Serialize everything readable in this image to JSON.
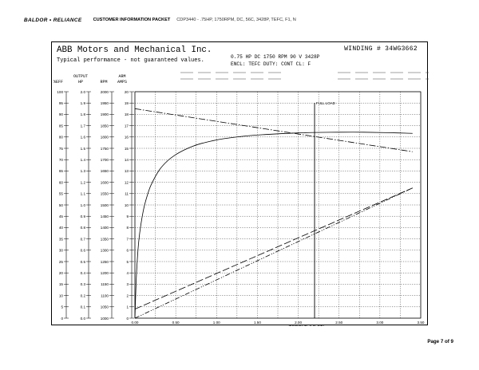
{
  "header": {
    "logo": "BALDOR • RELIANCE",
    "packet": "CUSTOMER INFORMATION PACKET",
    "desc": "CDP3440 - .75HP, 1750RPM, DC, 56C, 3428P, TEFC, F1, N"
  },
  "footer": {
    "page": "Page 7 of 9"
  },
  "sheet": {
    "company": "ABB Motors and Mechanical Inc.",
    "winding": "WINDING # 34WG3662",
    "typical": "Typical performance - not guaranteed values.",
    "rating": "0.75 HP  DC  1750 RPM  90 V  3428P",
    "encl": "ENCL: TEFC  DUTY: CONT  CL: F"
  },
  "chart_data": {
    "type": "line",
    "xlabel": "TORQUE (LB-FT)",
    "xlim": [
      0,
      3.5
    ],
    "x_ticks": [
      "0.00",
      "0.50",
      "1.00",
      "1.50",
      "2.00",
      "2.50",
      "3.00",
      "3.50"
    ],
    "axes": [
      {
        "header": [
          "",
          "%EFF"
        ],
        "ticks": [
          "0",
          "5",
          "10",
          "15",
          "20",
          "25",
          "30",
          "35",
          "40",
          "45",
          "50",
          "55",
          "60",
          "65",
          "70",
          "75",
          "80",
          "85",
          "90",
          "95",
          "100"
        ]
      },
      {
        "header": [
          "OUTPUT",
          "HP"
        ],
        "ticks": [
          "0.0",
          "0.1",
          "0.2",
          "0.3",
          "0.4",
          "0.5",
          "0.6",
          "0.7",
          "0.8",
          "0.9",
          "1.0",
          "1.1",
          "1.2",
          "1.3",
          "1.4",
          "1.5",
          "1.6",
          "1.7",
          "1.8",
          "1.9",
          "2.0"
        ]
      },
      {
        "header": [
          "",
          "RPM"
        ],
        "ticks": [
          "1000",
          "1050",
          "1100",
          "1150",
          "1200",
          "1250",
          "1300",
          "1350",
          "1400",
          "1450",
          "1500",
          "1550",
          "1600",
          "1650",
          "1700",
          "1750",
          "1800",
          "1850",
          "1900",
          "1950",
          "2000"
        ]
      },
      {
        "header": [
          "ARM",
          "AMPS"
        ],
        "ticks": [
          "0",
          "1",
          "2",
          "3",
          "4",
          "5",
          "6",
          "7",
          "8",
          "9",
          "10",
          "11",
          "12",
          "13",
          "14",
          "15",
          "16",
          "17",
          "18",
          "19",
          "20"
        ]
      }
    ],
    "full_load": {
      "label": "FULL LOAD",
      "x": 2.2
    },
    "series": [
      {
        "style": "solid",
        "axis": "%EFF",
        "x": [
          0,
          0.02,
          0.05,
          0.1,
          0.15,
          0.2,
          0.3,
          0.4,
          0.5,
          0.6,
          0.7,
          0.8,
          1.0,
          1.2,
          1.4,
          1.6,
          1.8,
          2.0,
          2.2,
          2.5,
          2.8,
          3.1,
          3.4
        ],
        "y": [
          0,
          20,
          35,
          47,
          54,
          59,
          65.5,
          69.5,
          72.2,
          74.2,
          75.8,
          77,
          78.7,
          79.8,
          80.6,
          81.1,
          81.5,
          81.8,
          82,
          82.1,
          82.1,
          81.9,
          81.6
        ]
      },
      {
        "style": "dash-dot",
        "axis": "RPM",
        "x": [
          0,
          3.4
        ],
        "y": [
          1925,
          1735
        ]
      },
      {
        "style": "long-dash",
        "axis": "ARM AMPS",
        "x": [
          0,
          3.4
        ],
        "y": [
          0.8,
          11.5
        ]
      },
      {
        "style": "dash-dot-dot",
        "axis": "OUTPUT HP",
        "x": [
          0,
          3.4
        ],
        "y": [
          0,
          1.15
        ]
      }
    ]
  }
}
